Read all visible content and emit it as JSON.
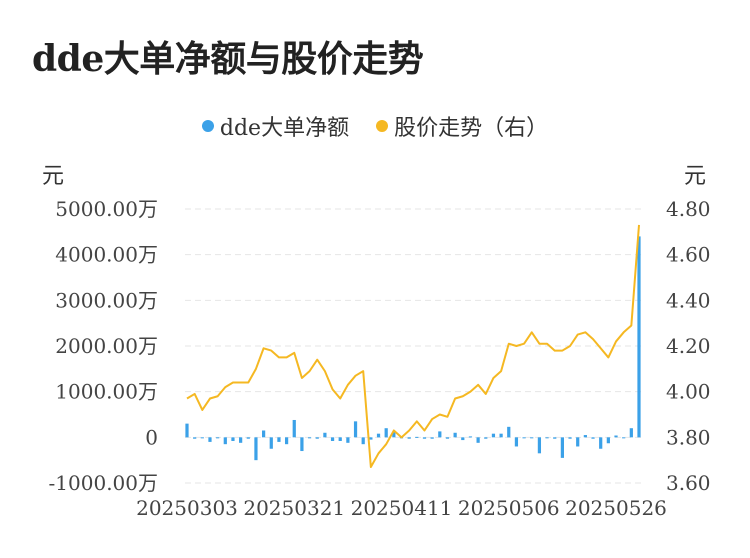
{
  "title": "dde大单净额与股价走势",
  "legend": {
    "series1": {
      "label": "dde大单净额",
      "color": "#3ba1e8"
    },
    "series2": {
      "label": "股价走势（右）",
      "color": "#f5b822"
    }
  },
  "units": {
    "left": "元",
    "right": "元"
  },
  "chart_data": {
    "type": "bar+line",
    "title": "dde大单净额与股价走势",
    "x_tick_labels": [
      "20250303",
      "20250321",
      "20250411",
      "20250506",
      "20250526"
    ],
    "x_tick_index": [
      0,
      14,
      28,
      42,
      56
    ],
    "left_axis": {
      "unit": "元",
      "ylim": [
        -1000,
        5000
      ],
      "ticks": [
        5000,
        4000,
        3000,
        2000,
        1000,
        0,
        -1000
      ],
      "tick_labels": [
        "5000.00万",
        "4000.00万",
        "3000.00万",
        "2000.00万",
        "1000.00万",
        "0",
        "-1000.00万"
      ]
    },
    "right_axis": {
      "unit": "元",
      "ylim": [
        3.6,
        4.8
      ],
      "ticks": [
        4.8,
        4.6,
        4.4,
        4.2,
        4.0,
        3.8,
        3.6
      ],
      "tick_labels": [
        "4.80",
        "4.60",
        "4.40",
        "4.20",
        "4.00",
        "3.80",
        "3.60"
      ]
    },
    "grid": true,
    "series": [
      {
        "name": "dde大单净额",
        "type": "bar",
        "axis": "left",
        "unit": "万",
        "values": [
          300,
          -30,
          -20,
          -100,
          -20,
          -150,
          -80,
          -120,
          -30,
          -500,
          150,
          -250,
          -100,
          -150,
          380,
          -300,
          -20,
          -30,
          100,
          -80,
          -80,
          -120,
          350,
          -150,
          -50,
          80,
          200,
          120,
          -10,
          -30,
          10,
          -30,
          -30,
          130,
          -30,
          100,
          -60,
          20,
          -120,
          -30,
          80,
          80,
          230,
          -200,
          -20,
          -10,
          -350,
          -20,
          -30,
          -450,
          -30,
          -200,
          50,
          -30,
          -250,
          -130,
          40,
          -10,
          200,
          4400
        ]
      },
      {
        "name": "股价走势（右）",
        "type": "line",
        "axis": "right",
        "unit": "元",
        "values": [
          3.97,
          3.99,
          3.92,
          3.97,
          3.98,
          4.02,
          4.04,
          4.04,
          4.04,
          4.1,
          4.19,
          4.18,
          4.15,
          4.15,
          4.17,
          4.06,
          4.09,
          4.14,
          4.09,
          4.01,
          3.97,
          4.03,
          4.07,
          4.09,
          3.67,
          3.73,
          3.77,
          3.83,
          3.8,
          3.83,
          3.87,
          3.83,
          3.88,
          3.9,
          3.89,
          3.97,
          3.98,
          4.0,
          4.03,
          3.99,
          4.06,
          4.09,
          4.21,
          4.2,
          4.21,
          4.26,
          4.21,
          4.21,
          4.18,
          4.18,
          4.2,
          4.25,
          4.26,
          4.23,
          4.19,
          4.15,
          4.22,
          4.26,
          4.29,
          4.73
        ]
      }
    ]
  }
}
